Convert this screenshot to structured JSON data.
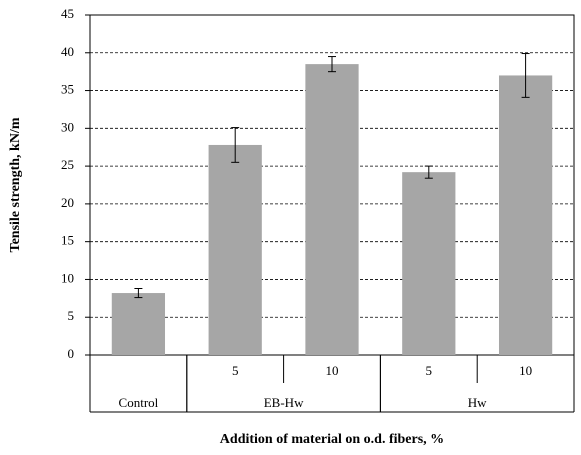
{
  "chart_data": {
    "type": "bar",
    "y_label": "Tensile strength, kN/m",
    "x_label": "Addition of material on o.d. fibers, %",
    "color": "#a6a6a6",
    "groups": [
      {
        "name": "Control",
        "categories": [
          null
        ],
        "values": [
          8.2
        ],
        "errors": [
          0.6
        ]
      },
      {
        "name": "EB-Hw",
        "categories": [
          "5",
          "10"
        ],
        "values": [
          27.8,
          38.5
        ],
        "errors": [
          2.3,
          1.0
        ]
      },
      {
        "name": "Hw",
        "categories": [
          "5",
          "10"
        ],
        "values": [
          24.2,
          37.0
        ],
        "errors": [
          0.8,
          2.9
        ]
      }
    ],
    "ylim": [
      0,
      45
    ],
    "yticks": [
      0,
      5,
      10,
      15,
      20,
      25,
      30,
      35,
      40,
      45
    ],
    "grid": true
  }
}
